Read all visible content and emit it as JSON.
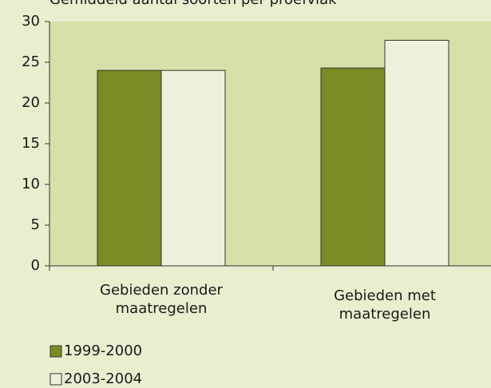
{
  "chart_data": {
    "type": "bar",
    "title": "Gemiddeld aantal soorten per proefvlak",
    "categories": [
      "Gebieden zonder maatregelen",
      "Gebieden met maatregelen"
    ],
    "series": [
      {
        "name": "1999-2000",
        "color": "#7b8c24",
        "values": [
          24,
          24.3
        ]
      },
      {
        "name": "2003-2004",
        "color": "#eef2dc",
        "values": [
          24,
          27.7
        ]
      }
    ],
    "ylim": [
      0,
      30
    ],
    "yticks": [
      0,
      5,
      10,
      15,
      20,
      25,
      30
    ]
  }
}
